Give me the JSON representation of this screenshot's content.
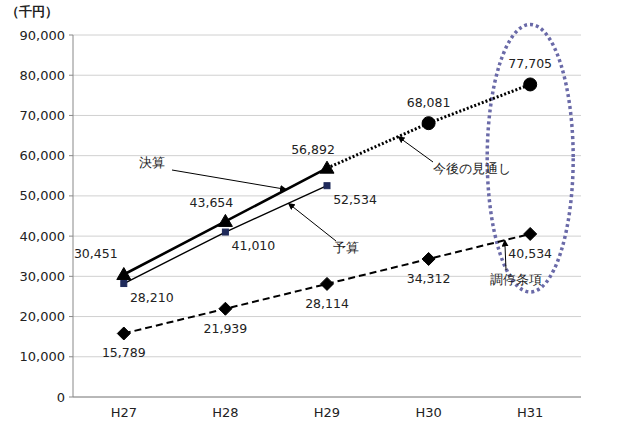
{
  "chart_data": {
    "type": "line",
    "y_label": "（千円）",
    "categories": [
      "H27",
      "H28",
      "H29",
      "H30",
      "H31"
    ],
    "series": [
      {
        "name": "決算",
        "color": "#000000",
        "marker": "triangle",
        "line_style": "solid",
        "values": [
          30451,
          43654,
          56892,
          null,
          null
        ]
      },
      {
        "name": "予算",
        "color": "#000000",
        "marker": "square",
        "line_style": "solid",
        "values": [
          28210,
          41010,
          52534,
          null,
          null
        ]
      },
      {
        "name": "今後の見通し",
        "color": "#000000",
        "marker": "circle",
        "line_style": "dotted",
        "values": [
          null,
          null,
          56892,
          68081,
          77705
        ]
      },
      {
        "name": "調停条項",
        "color": "#000000",
        "marker": "diamond",
        "line_style": "dashed",
        "values": [
          15789,
          21939,
          28114,
          34312,
          40534
        ]
      }
    ],
    "ylim": [
      0,
      90000
    ],
    "yticks": [
      0,
      {
        "value": 10000,
        "label": "10,000"
      },
      {
        "value": 20000,
        "label": "20,000"
      },
      {
        "value": 30000,
        "label": "30,000"
      },
      {
        "value": 40000,
        "label": "40,000"
      },
      {
        "value": 50000,
        "label": "50,000"
      },
      {
        "value": 60000,
        "label": "60,000"
      },
      {
        "value": 70000,
        "label": "70,000"
      },
      {
        "value": 80000,
        "label": "80,000"
      },
      {
        "value": 90000,
        "label": "90,000"
      }
    ],
    "grid": true,
    "data_labels": true
  }
}
